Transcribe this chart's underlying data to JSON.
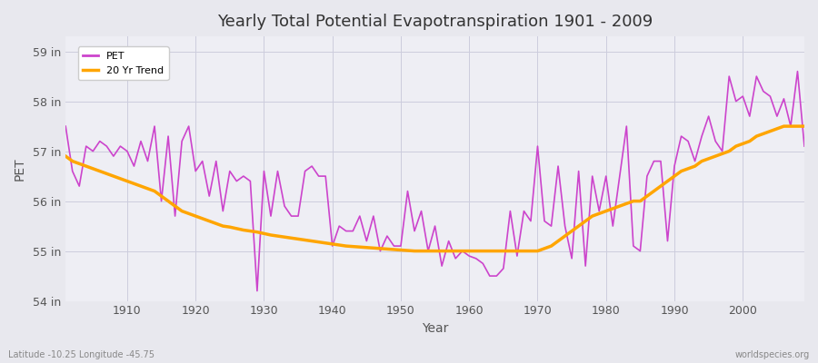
{
  "title": "Yearly Total Potential Evapotranspiration 1901 - 2009",
  "xlabel": "Year",
  "ylabel": "PET",
  "subtitle": "Latitude -10.25 Longitude -45.75",
  "watermark": "worldspecies.org",
  "ylim": [
    54,
    59.3
  ],
  "xlim": [
    1901,
    2009
  ],
  "yticks": [
    54,
    55,
    56,
    57,
    58,
    59
  ],
  "ytick_labels": [
    "54 in",
    "55 in",
    "56 in",
    "57 in",
    "58 in",
    "59 in"
  ],
  "xticks": [
    1910,
    1920,
    1930,
    1940,
    1950,
    1960,
    1970,
    1980,
    1990,
    2000
  ],
  "pet_color": "#CC44CC",
  "trend_color": "#FFA500",
  "bg_color": "#E8E8EE",
  "plot_bg_color": "#EEEEF4",
  "grid_color": "#CCCCDD",
  "legend_labels": [
    "PET",
    "20 Yr Trend"
  ],
  "years": [
    1901,
    1902,
    1903,
    1904,
    1905,
    1906,
    1907,
    1908,
    1909,
    1910,
    1911,
    1912,
    1913,
    1914,
    1915,
    1916,
    1917,
    1918,
    1919,
    1920,
    1921,
    1922,
    1923,
    1924,
    1925,
    1926,
    1927,
    1928,
    1929,
    1930,
    1931,
    1932,
    1933,
    1934,
    1935,
    1936,
    1937,
    1938,
    1939,
    1940,
    1941,
    1942,
    1943,
    1944,
    1945,
    1946,
    1947,
    1948,
    1949,
    1950,
    1951,
    1952,
    1953,
    1954,
    1955,
    1956,
    1957,
    1958,
    1959,
    1960,
    1961,
    1962,
    1963,
    1964,
    1965,
    1966,
    1967,
    1968,
    1969,
    1970,
    1971,
    1972,
    1973,
    1974,
    1975,
    1976,
    1977,
    1978,
    1979,
    1980,
    1981,
    1982,
    1983,
    1984,
    1985,
    1986,
    1987,
    1988,
    1989,
    1990,
    1991,
    1992,
    1993,
    1994,
    1995,
    1996,
    1997,
    1998,
    1999,
    2000,
    2001,
    2002,
    2003,
    2004,
    2005,
    2006,
    2007,
    2008,
    2009
  ],
  "pet_values": [
    57.5,
    56.6,
    56.3,
    57.1,
    57.0,
    57.2,
    57.1,
    56.9,
    57.1,
    57.0,
    56.7,
    57.2,
    56.8,
    57.5,
    56.0,
    57.3,
    55.7,
    57.2,
    57.5,
    56.6,
    56.8,
    56.1,
    56.8,
    55.8,
    56.6,
    56.4,
    56.5,
    56.4,
    54.2,
    56.6,
    55.7,
    56.6,
    55.9,
    55.7,
    55.7,
    56.6,
    56.7,
    56.5,
    56.5,
    55.1,
    55.5,
    55.4,
    55.4,
    55.7,
    55.2,
    55.7,
    55.0,
    55.3,
    55.1,
    55.1,
    56.2,
    55.4,
    55.8,
    55.0,
    55.5,
    54.7,
    55.2,
    54.85,
    55.0,
    54.9,
    54.85,
    54.75,
    54.5,
    54.5,
    54.65,
    55.8,
    54.9,
    55.8,
    55.6,
    57.1,
    55.6,
    55.5,
    56.7,
    55.5,
    54.85,
    56.6,
    54.7,
    56.5,
    55.8,
    56.5,
    55.5,
    56.5,
    57.5,
    55.1,
    55.0,
    56.5,
    56.8,
    56.8,
    55.2,
    56.7,
    57.3,
    57.2,
    56.8,
    57.3,
    57.7,
    57.2,
    57.0,
    58.5,
    58.0,
    58.1,
    57.7,
    58.5,
    58.2,
    58.1,
    57.7,
    58.05,
    57.5,
    58.6,
    57.1
  ],
  "trend_values": [
    56.9,
    56.8,
    56.75,
    56.7,
    56.65,
    56.6,
    56.55,
    56.5,
    56.45,
    56.4,
    56.35,
    56.3,
    56.25,
    56.2,
    56.1,
    56.0,
    55.9,
    55.8,
    55.75,
    55.7,
    55.65,
    55.6,
    55.55,
    55.5,
    55.48,
    55.45,
    55.42,
    55.4,
    55.38,
    55.35,
    55.32,
    55.3,
    55.28,
    55.26,
    55.24,
    55.22,
    55.2,
    55.18,
    55.16,
    55.14,
    55.12,
    55.1,
    55.09,
    55.08,
    55.07,
    55.06,
    55.05,
    55.04,
    55.03,
    55.02,
    55.01,
    55.0,
    55.0,
    55.0,
    55.0,
    55.0,
    55.0,
    55.0,
    55.0,
    55.0,
    55.0,
    55.0,
    55.0,
    55.0,
    55.0,
    55.0,
    55.0,
    55.0,
    55.0,
    55.0,
    55.05,
    55.1,
    55.2,
    55.3,
    55.4,
    55.5,
    55.6,
    55.7,
    55.75,
    55.8,
    55.85,
    55.9,
    55.95,
    56.0,
    56.0,
    56.1,
    56.2,
    56.3,
    56.4,
    56.5,
    56.6,
    56.65,
    56.7,
    56.8,
    56.85,
    56.9,
    56.95,
    57.0,
    57.1,
    57.15,
    57.2,
    57.3,
    57.35,
    57.4,
    57.45,
    57.5,
    57.5,
    57.5,
    57.5
  ]
}
